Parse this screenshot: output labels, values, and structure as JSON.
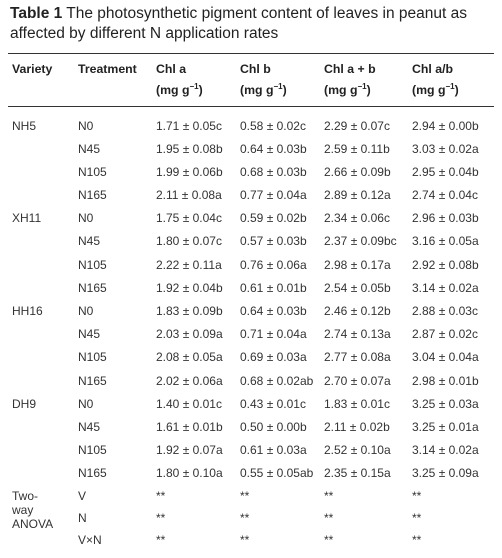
{
  "caption": {
    "label": "Table 1",
    "text": "The photosynthetic pigment content of leaves in peanut as affected by different N application rates"
  },
  "headers": {
    "variety": "Variety",
    "treatment": "Treatment",
    "chla": "Chl a",
    "chlb": "Chl b",
    "chlab": "Chl a + b",
    "ratio": "Chl a/b",
    "unit": "(mg g",
    "unit_sup": "−1",
    "unit_close": ")"
  },
  "rows": [
    {
      "variety": "NH5",
      "treatment": "N0",
      "chla": "1.71 ± 0.05c",
      "chlb": "0.58 ± 0.02c",
      "chlab": "2.29 ± 0.07c",
      "ratio": "2.94 ± 0.00b"
    },
    {
      "variety": "",
      "treatment": "N45",
      "chla": "1.95 ± 0.08b",
      "chlb": "0.64 ± 0.03b",
      "chlab": "2.59 ± 0.11b",
      "ratio": "3.03 ± 0.02a"
    },
    {
      "variety": "",
      "treatment": "N105",
      "chla": "1.99 ± 0.06b",
      "chlb": "0.68 ± 0.03b",
      "chlab": "2.66 ± 0.09b",
      "ratio": "2.95 ± 0.04b"
    },
    {
      "variety": "",
      "treatment": "N165",
      "chla": "2.11 ± 0.08a",
      "chlb": "0.77 ± 0.04a",
      "chlab": "2.89 ± 0.12a",
      "ratio": "2.74 ± 0.04c"
    },
    {
      "variety": "XH11",
      "treatment": "N0",
      "chla": "1.75 ± 0.04c",
      "chlb": "0.59 ± 0.02b",
      "chlab": "2.34 ± 0.06c",
      "ratio": "2.96 ± 0.03b"
    },
    {
      "variety": "",
      "treatment": "N45",
      "chla": "1.80 ± 0.07c",
      "chlb": "0.57 ± 0.03b",
      "chlab": "2.37 ± 0.09bc",
      "ratio": "3.16 ± 0.05a"
    },
    {
      "variety": "",
      "treatment": "N105",
      "chla": "2.22 ± 0.11a",
      "chlb": "0.76 ± 0.06a",
      "chlab": "2.98 ± 0.17a",
      "ratio": "2.92 ± 0.08b"
    },
    {
      "variety": "",
      "treatment": "N165",
      "chla": "1.92 ± 0.04b",
      "chlb": "0.61 ± 0.01b",
      "chlab": "2.54 ± 0.05b",
      "ratio": "3.14 ± 0.02a"
    },
    {
      "variety": "HH16",
      "treatment": "N0",
      "chla": "1.83 ± 0.09b",
      "chlb": "0.64 ± 0.03b",
      "chlab": "2.46 ± 0.12b",
      "ratio": "2.88 ± 0.03c"
    },
    {
      "variety": "",
      "treatment": "N45",
      "chla": "2.03 ± 0.09a",
      "chlb": "0.71 ± 0.04a",
      "chlab": "2.74 ± 0.13a",
      "ratio": "2.87 ± 0.02c"
    },
    {
      "variety": "",
      "treatment": "N105",
      "chla": "2.08 ± 0.05a",
      "chlb": "0.69 ± 0.03a",
      "chlab": "2.77 ± 0.08a",
      "ratio": "3.04 ± 0.04a"
    },
    {
      "variety": "",
      "treatment": "N165",
      "chla": "2.02 ± 0.06a",
      "chlb": "0.68 ± 0.02ab",
      "chlab": "2.70 ± 0.07a",
      "ratio": "2.98 ± 0.01b"
    },
    {
      "variety": "DH9",
      "treatment": "N0",
      "chla": "1.40 ± 0.01c",
      "chlb": "0.43 ± 0.01c",
      "chlab": "1.83 ± 0.01c",
      "ratio": "3.25 ± 0.03a"
    },
    {
      "variety": "",
      "treatment": "N45",
      "chla": "1.61 ± 0.01b",
      "chlb": "0.50 ± 0.00b",
      "chlab": "2.11 ± 0.02b",
      "ratio": "3.25 ± 0.01a"
    },
    {
      "variety": "",
      "treatment": "N105",
      "chla": "1.92 ± 0.07a",
      "chlb": "0.61 ± 0.03a",
      "chlab": "2.52 ± 0.10a",
      "ratio": "3.14 ± 0.02a"
    },
    {
      "variety": "",
      "treatment": "N165",
      "chla": "1.80 ± 0.10a",
      "chlb": "0.55 ± 0.05ab",
      "chlab": "2.35 ± 0.15a",
      "ratio": "3.25 ± 0.09a"
    }
  ],
  "anova": {
    "label": [
      "Two-",
      "way",
      "ANOVA"
    ],
    "rows": [
      {
        "treatment": "V",
        "chla": "**",
        "chlb": "**",
        "chlab": "**",
        "ratio": "**"
      },
      {
        "treatment": "N",
        "chla": "**",
        "chlb": "**",
        "chlab": "**",
        "ratio": "**"
      },
      {
        "treatment": "V×N",
        "chla": "**",
        "chlb": "**",
        "chlab": "**",
        "ratio": "**"
      }
    ]
  }
}
